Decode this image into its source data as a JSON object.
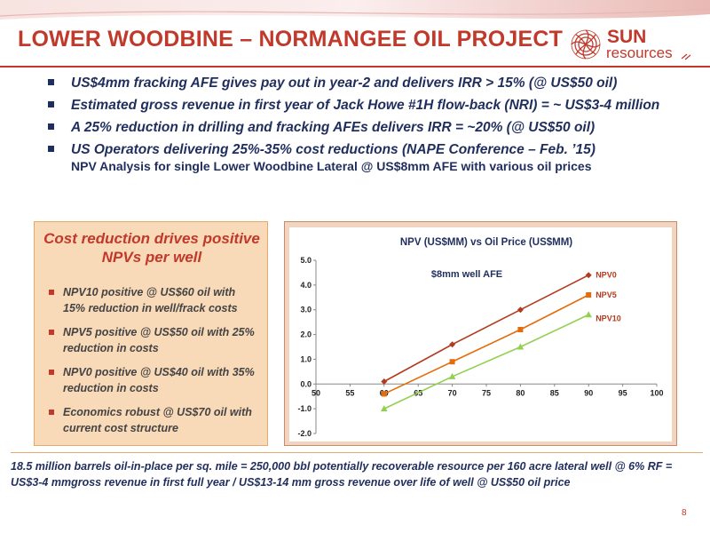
{
  "header": {
    "title": "LOWER WOODBINE – NORMANGEE OIL PROJECT",
    "logo_sun": "SUN",
    "logo_resources": "resources"
  },
  "bullets": [
    {
      "text": "US$4mm fracking AFE gives pay out in year-2 and delivers IRR > 15% (@ US$50 oil)"
    },
    {
      "text": "Estimated gross revenue in first year of Jack Howe #1H flow-back (NRI) = ~ US$3-4 million"
    },
    {
      "text": "A 25% reduction in drilling and fracking AFEs delivers IRR = ~20% (@ US$50 oil)"
    },
    {
      "text": "US Operators delivering 25%-35% cost reductions (NAPE Conference – Feb. ’15)",
      "sub": "NPV Analysis for single Lower Woodbine Lateral @ US$8mm AFE with various oil prices"
    }
  ],
  "left_panel": {
    "heading": "Cost reduction drives positive NPVs per well",
    "items": [
      "NPV10 positive @ US$60 oil with 15% reduction in well/frack costs",
      "NPV5 positive @ US$50 oil with 25% reduction in costs",
      "NPV0 positive @ US$40 oil with 35% reduction in costs",
      "Economics robust @ US$70 oil with current cost structure"
    ]
  },
  "chart_data": {
    "type": "line",
    "title": "NPV (US$MM) vs Oil Price (US$MM)",
    "annotation": "$8mm well AFE",
    "x": [
      60,
      70,
      80,
      90
    ],
    "xlim": [
      50,
      100
    ],
    "xticks": [
      "50",
      "55",
      "60",
      "65",
      "70",
      "75",
      "80",
      "85",
      "90",
      "95",
      "100"
    ],
    "ylim": [
      -2.0,
      5.0
    ],
    "yticks": [
      "-2.0",
      "-1.0",
      "0.0",
      "1.0",
      "2.0",
      "3.0",
      "4.0",
      "5.0"
    ],
    "series": [
      {
        "name": "NPV0",
        "values": [
          0.1,
          1.6,
          3.0,
          4.4
        ],
        "color": "#b33a1f",
        "marker": "diamond"
      },
      {
        "name": "NPV5",
        "values": [
          -0.4,
          0.9,
          2.2,
          3.6
        ],
        "color": "#e46c0a",
        "marker": "square"
      },
      {
        "name": "NPV10",
        "values": [
          -1.0,
          0.3,
          1.5,
          2.8
        ],
        "color": "#92d050",
        "marker": "triangle"
      }
    ],
    "grid": false,
    "legend": "right-labels"
  },
  "footer": {
    "note": "18.5 million barrels oil-in-place per sq. mile = 250,000 bbl potentially recoverable resource per 160 acre lateral well @ 6% RF = US$3-4 mmgross revenue in first full year / US$13-14 mm gross revenue over life of well @ US$50 oil price",
    "page_number": "8"
  },
  "colors": {
    "accent": "#c0392b",
    "navy": "#1f2e5c",
    "panel": "#f8d9b8"
  }
}
